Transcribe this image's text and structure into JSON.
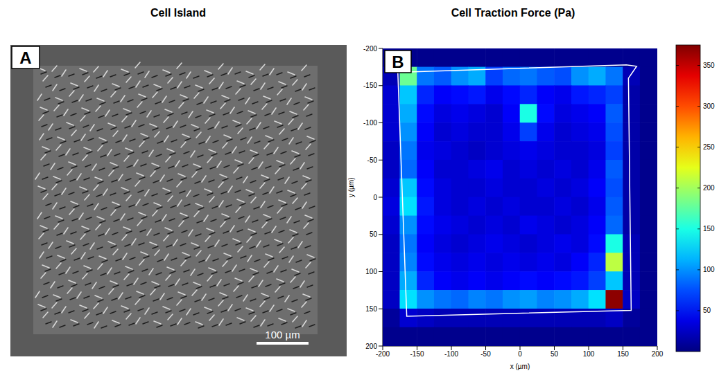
{
  "chart_data": [
    {
      "type": "image",
      "title": "Cell Island",
      "panel_label": "A",
      "scale_bar": {
        "label": "100 µm",
        "length": 100
      }
    },
    {
      "type": "heatmap",
      "title": "Cell Traction Force (Pa)",
      "panel_label": "B",
      "x_label": "x (µm)",
      "y_label": "y (µm)",
      "xlim": [
        -200,
        200
      ],
      "xticks": [
        -200,
        -150,
        -100,
        -50,
        0,
        50,
        100,
        150,
        200
      ],
      "ylim": [
        -200,
        200
      ],
      "yticks": [
        -200,
        -150,
        -100,
        -50,
        0,
        50,
        100,
        150,
        200
      ],
      "x": [
        -187.5,
        -162.5,
        -137.5,
        -112.5,
        -87.5,
        -62.5,
        -37.5,
        -12.5,
        12.5,
        37.5,
        62.5,
        87.5,
        112.5,
        137.5,
        162.5,
        187.5
      ],
      "y": [
        -187.5,
        -162.5,
        -137.5,
        -112.5,
        -87.5,
        -62.5,
        -37.5,
        -12.5,
        12.5,
        37.5,
        62.5,
        87.5,
        112.5,
        137.5,
        162.5,
        187.5
      ],
      "values": [
        [
          5,
          5,
          5,
          5,
          5,
          5,
          5,
          5,
          5,
          5,
          5,
          5,
          5,
          5,
          5,
          5
        ],
        [
          20,
          180,
          90,
          80,
          100,
          110,
          70,
          85,
          90,
          80,
          75,
          100,
          110,
          90,
          20,
          5
        ],
        [
          30,
          120,
          60,
          45,
          50,
          55,
          40,
          50,
          60,
          45,
          40,
          55,
          60,
          70,
          15,
          5
        ],
        [
          30,
          110,
          50,
          35,
          40,
          35,
          30,
          45,
          150,
          50,
          35,
          40,
          45,
          80,
          15,
          5
        ],
        [
          30,
          100,
          45,
          30,
          35,
          30,
          30,
          40,
          70,
          40,
          30,
          35,
          40,
          75,
          15,
          5
        ],
        [
          25,
          90,
          40,
          35,
          30,
          25,
          30,
          35,
          40,
          35,
          30,
          30,
          35,
          70,
          15,
          5
        ],
        [
          25,
          85,
          45,
          30,
          30,
          35,
          40,
          30,
          35,
          30,
          35,
          30,
          40,
          80,
          15,
          5
        ],
        [
          30,
          120,
          50,
          35,
          30,
          30,
          35,
          30,
          30,
          35,
          30,
          35,
          45,
          75,
          15,
          5
        ],
        [
          35,
          130,
          55,
          35,
          30,
          35,
          30,
          35,
          30,
          30,
          35,
          30,
          40,
          80,
          15,
          5
        ],
        [
          30,
          100,
          50,
          40,
          35,
          30,
          35,
          30,
          40,
          35,
          30,
          35,
          45,
          85,
          15,
          5
        ],
        [
          25,
          90,
          45,
          35,
          30,
          35,
          40,
          35,
          30,
          35,
          40,
          35,
          50,
          150,
          20,
          5
        ],
        [
          25,
          95,
          50,
          40,
          35,
          40,
          35,
          40,
          35,
          40,
          35,
          45,
          60,
          210,
          20,
          5
        ],
        [
          25,
          110,
          60,
          45,
          40,
          45,
          40,
          45,
          50,
          45,
          50,
          55,
          70,
          120,
          20,
          5
        ],
        [
          25,
          130,
          100,
          90,
          85,
          95,
          90,
          100,
          105,
          95,
          100,
          110,
          130,
          370,
          25,
          5
        ],
        [
          10,
          30,
          25,
          20,
          20,
          20,
          20,
          20,
          20,
          20,
          20,
          20,
          20,
          25,
          10,
          5
        ],
        [
          5,
          5,
          5,
          5,
          5,
          5,
          5,
          5,
          5,
          5,
          5,
          5,
          5,
          5,
          5,
          5
        ]
      ],
      "colorbar": {
        "range": [
          0,
          375
        ],
        "ticks": [
          50,
          100,
          150,
          200,
          250,
          300,
          350
        ]
      },
      "outline": {
        "x": [
          -178,
          155,
          170,
          158,
          162,
          -165,
          -178
        ],
        "y": [
          -168,
          -178,
          -176,
          -160,
          152,
          160,
          -168
        ]
      }
    }
  ]
}
